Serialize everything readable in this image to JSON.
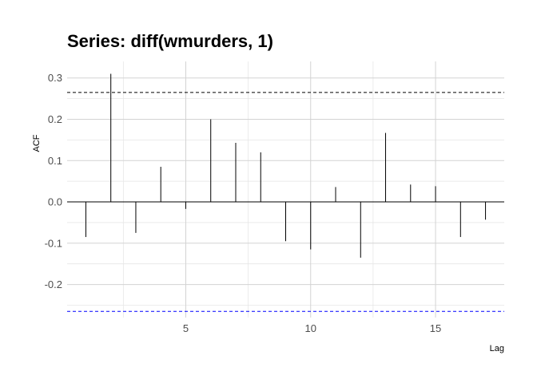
{
  "chart_data": {
    "type": "bar",
    "title": "Series: diff(wmurders, 1)",
    "xlabel": "Lag",
    "ylabel": "ACF",
    "x": [
      1,
      2,
      3,
      4,
      5,
      6,
      7,
      8,
      9,
      10,
      11,
      12,
      13,
      14,
      15,
      16,
      17
    ],
    "values": [
      -0.085,
      0.31,
      -0.075,
      0.085,
      -0.017,
      0.2,
      0.143,
      0.12,
      -0.095,
      -0.115,
      0.036,
      -0.135,
      0.167,
      0.042,
      0.038,
      -0.085,
      -0.043
    ],
    "xlim": [
      0.25,
      17.75
    ],
    "ylim": [
      -0.28,
      0.34
    ],
    "xticks": [
      5,
      10,
      15
    ],
    "xtick_labels": [
      "5",
      "10",
      "15"
    ],
    "yticks": [
      -0.2,
      -0.1,
      0.0,
      0.1,
      0.2,
      0.3
    ],
    "ytick_labels": [
      "-0.2",
      "-0.1",
      "0.0",
      "0.1",
      "0.2",
      "0.3"
    ],
    "confidence_bounds": {
      "upper": 0.265,
      "lower": -0.265,
      "upper_color": "#000000",
      "lower_color": "#0000ff"
    },
    "grid": true
  }
}
